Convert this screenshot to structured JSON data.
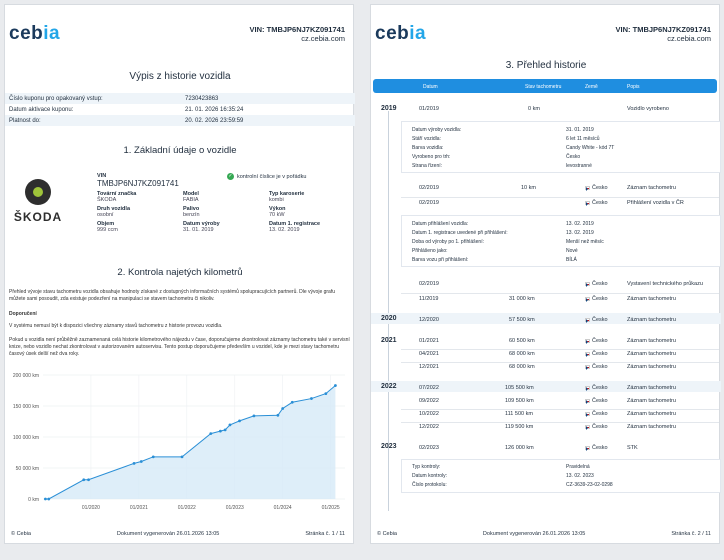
{
  "brand": "cebia",
  "page1": {
    "vin_header": "VIN: TMBJP6NJ7KZ091741",
    "site": "cz.cebia.com",
    "title": "Výpis z historie vozidla",
    "info": [
      {
        "k": "Číslo kuponu pro opakovaný vstup:",
        "v": "7230423863"
      },
      {
        "k": "Datum aktivace kuponu:",
        "v": "21. 01. 2026 16:35:24"
      },
      {
        "k": "Platnost do:",
        "v": "20. 02. 2026 23:59:59"
      }
    ],
    "sec1": "1. Základní údaje o vozidle",
    "logo_text": "ŠKODA",
    "vin_label": "VIN",
    "vin": "TMBJP6NJ7KZ091741",
    "vin_check": "kontrolní číslice je v pořádku",
    "vehicle": [
      {
        "k": "Tovární značka",
        "v": "ŠKODA"
      },
      {
        "k": "Model",
        "v": "FABIA"
      },
      {
        "k": "Typ karoserie",
        "v": "kombi"
      },
      {
        "k": "Druh vozidla",
        "v": "osobní"
      },
      {
        "k": "Palivo",
        "v": "benzín"
      },
      {
        "k": "Výkon",
        "v": "70 kW"
      },
      {
        "k": "Objem",
        "v": "999 ccm"
      },
      {
        "k": "Datum výroby",
        "v": "31. 01. 2019"
      },
      {
        "k": "Datum 1. registrace",
        "v": "13. 02. 2019"
      }
    ],
    "sec2": "2. Kontrola najetých kilometrů",
    "para1": "Přehled vývoje stavu tachometru vozidla obsahuje hodnoty získané z dostupných informačních systémů spolupracujících partnerů. Dle vývoje grafu můžete sami posoudit, zda existuje podezření na manipulaci se stavem tachometru či nikoliv.",
    "para2_title": "Doporučení",
    "para2": "V systému nemusí být k dispozici všechny záznamy stavů tachometru z historie provozu vozidla.",
    "para3": "Pokud u vozidla není průběžně zaznamenaná celá historie kilometrového nájezdu v čase, doporučujeme zkontrolovat záznamy tachometru také v servisní knize, nebo vozidlo nechat zkontrolovat v autorizovaném autoservisu. Tento postup doporučujeme především u vozidel, kde je mezi stavy tachometru časový úsek delší než dva roky.",
    "footer": {
      "left": "© Cebia",
      "center": "Dokument vygenerován 26.01.2026 13:05",
      "right": "Stránka č. 1 / 11"
    }
  },
  "chart_data": {
    "type": "area",
    "title": "",
    "xlabel": "",
    "ylabel": "",
    "y_ticks": [
      "0 km",
      "50 000 km",
      "100 000 km",
      "150 000 km",
      "200 000 km"
    ],
    "x_ticks": [
      "01/2020",
      "01/2021",
      "01/2022",
      "01/2023",
      "01/2024",
      "01/2025"
    ],
    "ylim": [
      0,
      200000
    ],
    "xlim": [
      2019.0,
      2025.3
    ],
    "grid": true,
    "points": [
      {
        "x": 2019.05,
        "y": 0
      },
      {
        "x": 2019.12,
        "y": 10
      },
      {
        "x": 2019.85,
        "y": 31000
      },
      {
        "x": 2019.95,
        "y": 31000
      },
      {
        "x": 2020.9,
        "y": 57500
      },
      {
        "x": 2021.05,
        "y": 60500
      },
      {
        "x": 2021.3,
        "y": 68000
      },
      {
        "x": 2021.9,
        "y": 68000
      },
      {
        "x": 2022.5,
        "y": 105500
      },
      {
        "x": 2022.7,
        "y": 109500
      },
      {
        "x": 2022.8,
        "y": 111500
      },
      {
        "x": 2022.9,
        "y": 119500
      },
      {
        "x": 2023.1,
        "y": 126000
      },
      {
        "x": 2023.4,
        "y": 134000
      },
      {
        "x": 2023.9,
        "y": 135000
      },
      {
        "x": 2024.0,
        "y": 146000
      },
      {
        "x": 2024.2,
        "y": 156000
      },
      {
        "x": 2024.6,
        "y": 162000
      },
      {
        "x": 2024.9,
        "y": 170000
      },
      {
        "x": 2025.1,
        "y": 183000
      }
    ]
  },
  "page2": {
    "vin_header": "VIN: TMBJP6NJ7KZ091741",
    "site": "cz.cebia.com",
    "title": "3. Přehled historie",
    "head": {
      "date": "Datum",
      "tacho": "Stav tachometru",
      "country": "Země",
      "desc": "Popis"
    },
    "years": {
      "y2019": "2019",
      "y2020": "2020",
      "y2021": "2021",
      "y2022": "2022",
      "y2023": "2023"
    },
    "r1": {
      "date": "01/2019",
      "km": "0 km",
      "desc": "Vozidlo vyrobeno"
    },
    "d1": [
      {
        "k": "Datum výroby vozidla:",
        "v": "31. 01. 2019"
      },
      {
        "k": "Stáří vozidla:",
        "v": "6 let 11 měsíců"
      },
      {
        "k": "Barva vozidla:",
        "v": "Candy White - kód 7T"
      },
      {
        "k": "Vyrobeno pro trh:",
        "v": "Česko"
      },
      {
        "k": "Strana řízení:",
        "v": "levostranné"
      }
    ],
    "r2": {
      "date": "02/2019",
      "km": "10 km",
      "country": "Česko",
      "desc": "Záznam tachometru"
    },
    "r3": {
      "date": "02/2019",
      "country": "Česko",
      "desc": "Přihlášení vozidla v ČR"
    },
    "d2": [
      {
        "k": "Datum přihlášení vozidla:",
        "v": "13. 02. 2019"
      },
      {
        "k": "Datum 1. registrace uvedené při přihlášení:",
        "v": "13. 02. 2019"
      },
      {
        "k": "Doba od výroby po 1. přihlášení:",
        "v": "Menší než měsíc"
      },
      {
        "k": "Přihlášeno jako:",
        "v": "Nové"
      },
      {
        "k": "Barva vozu při přihlášení:",
        "v": "BÍLÁ"
      }
    ],
    "r4": {
      "date": "02/2019",
      "country": "Česko",
      "desc": "Vystavení technického průkazu"
    },
    "r5": {
      "date": "11/2019",
      "km": "31 000 km",
      "country": "Česko",
      "desc": "Záznam tachometru"
    },
    "r6": {
      "date": "12/2020",
      "km": "57 500 km",
      "country": "Česko",
      "desc": "Záznam tachometru"
    },
    "r7": {
      "date": "01/2021",
      "km": "60 500 km",
      "country": "Česko",
      "desc": "Záznam tachometru"
    },
    "r8": {
      "date": "04/2021",
      "km": "68 000 km",
      "country": "Česko",
      "desc": "Záznam tachometru"
    },
    "r9": {
      "date": "12/2021",
      "km": "68 000 km",
      "country": "Česko",
      "desc": "Záznam tachometru"
    },
    "r10": {
      "date": "07/2022",
      "km": "105 500 km",
      "country": "Česko",
      "desc": "Záznam tachometru"
    },
    "r11": {
      "date": "09/2022",
      "km": "109 500 km",
      "country": "Česko",
      "desc": "Záznam tachometru"
    },
    "r12": {
      "date": "10/2022",
      "km": "111 500 km",
      "country": "Česko",
      "desc": "Záznam tachometru"
    },
    "r13": {
      "date": "12/2022",
      "km": "119 500 km",
      "country": "Česko",
      "desc": "Záznam tachometru"
    },
    "r14": {
      "date": "02/2023",
      "km": "126 000 km",
      "country": "Česko",
      "desc": "STK"
    },
    "d3": [
      {
        "k": "Typ kontroly:",
        "v": "Pravidelná"
      },
      {
        "k": "Datum kontroly:",
        "v": "13. 02. 2023"
      },
      {
        "k": "Číslo protokolu:",
        "v": "CZ-3639-23-02-0298"
      }
    ],
    "footer": {
      "left": "© Cebia",
      "center": "Dokument vygenerován 26.01.2026 13:05",
      "right": "Stránka č. 2 / 11"
    }
  }
}
